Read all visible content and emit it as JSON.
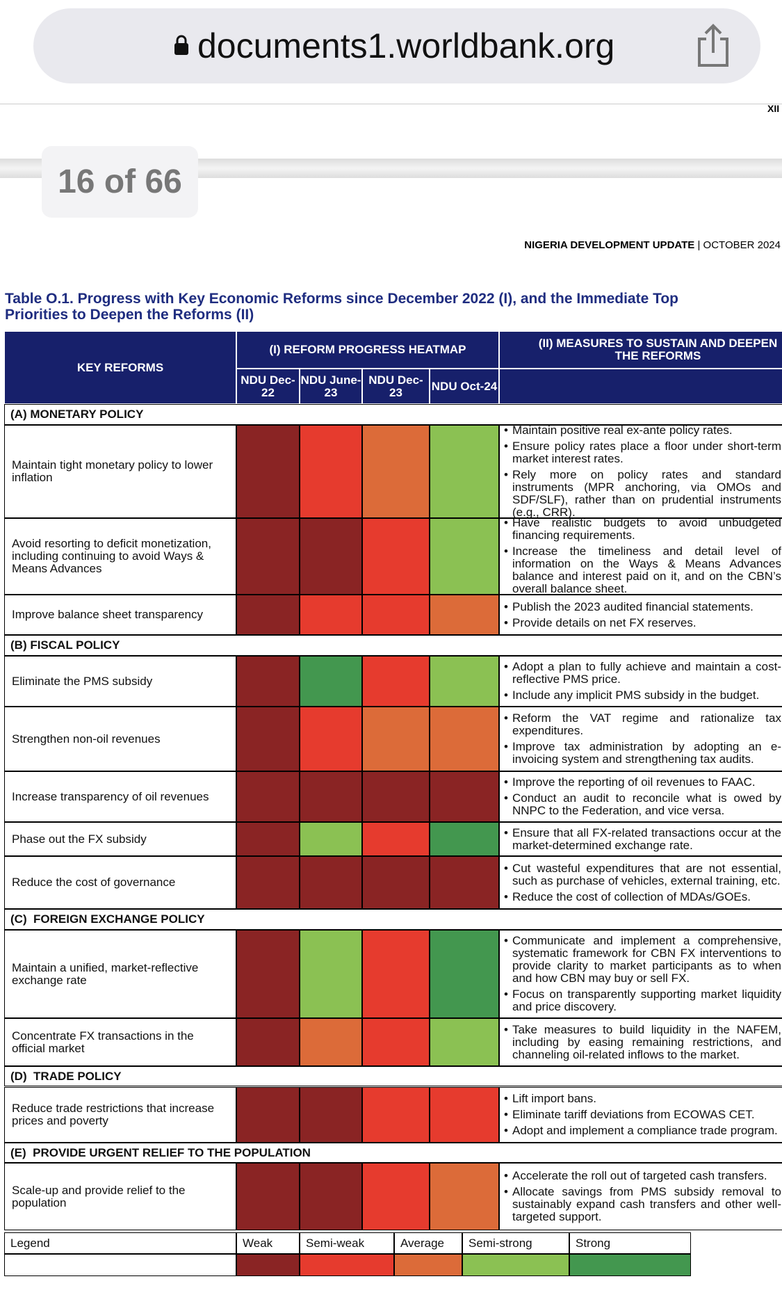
{
  "browser": {
    "url": "documents1.worldbank.org"
  },
  "page_indicator": "16 of 66",
  "page_number": "XII",
  "running_header": {
    "title": "NIGERIA DEVELOPMENT UPDATE",
    "separator": "|",
    "date": "OCTOBER 2024"
  },
  "table": {
    "title": "Table O.1. Progress with Key Economic Reforms since December 2022 (I), and the Immediate Top Priorities to Deepen the Reforms (II)",
    "header": {
      "key": "KEY REFORMS",
      "heatmap": "(I) REFORM PROGRESS HEATMAP",
      "measures": "(II) MEASURES TO SUSTAIN AND DEEPEN THE REFORMS",
      "periods": [
        "NDU Dec-22",
        "NDU June-23",
        "NDU Dec-23",
        "NDU Oct-24"
      ]
    },
    "sections": [
      {
        "title": "(A) MONETARY POLICY",
        "rows": [
          {
            "reform": "Maintain tight monetary policy to lower inflation",
            "heat": [
              0,
              1,
              2,
              3
            ],
            "measures": [
              "Maintain positive real ex-ante policy rates.",
              "Ensure policy rates place a floor under short-term market interest rates.",
              "Rely more on policy rates and standard instruments (MPR anchoring, via OMOs and SDF/SLF), rather than on prudential instruments (e.g., CRR)."
            ]
          },
          {
            "reform": "Avoid resorting to deficit monetization, including continuing to avoid Ways & Means Advances",
            "heat": [
              0,
              0,
              1,
              3
            ],
            "measures": [
              "Have realistic budgets to avoid unbudgeted financing requirements.",
              "Increase the timeliness and detail level of information on the Ways & Means Advances balance and interest paid on it, and on the CBN’s overall balance sheet."
            ]
          },
          {
            "reform": "Improve balance sheet transparency",
            "heat": [
              0,
              1,
              1,
              2
            ],
            "measures": [
              "Publish the 2023 audited financial statements.",
              "Provide details on net FX reserves."
            ]
          }
        ]
      },
      {
        "title": "(B) FISCAL POLICY",
        "rows": [
          {
            "reform": "Eliminate the PMS subsidy",
            "heat": [
              0,
              4,
              1,
              3
            ],
            "measures": [
              "Adopt a plan to fully achieve and maintain a cost-reflective PMS price.",
              "Include any implicit PMS subsidy in the budget."
            ]
          },
          {
            "reform": "Strengthen non-oil revenues",
            "heat": [
              0,
              1,
              2,
              2
            ],
            "measures": [
              "Reform the VAT regime and rationalize tax expenditures.",
              "Improve tax administration by adopting an e-invoicing system and strengthening tax audits."
            ]
          },
          {
            "reform": "Increase transparency of oil revenues",
            "heat": [
              0,
              0,
              0,
              0
            ],
            "measures": [
              "Improve the reporting of oil revenues to FAAC.",
              "Conduct an audit to reconcile what is owed by NNPC to the Federation, and vice versa."
            ]
          },
          {
            "reform": "Phase out the FX subsidy",
            "heat": [
              0,
              3,
              1,
              4
            ],
            "measures": [
              "Ensure that all FX-related transactions occur at the market-determined exchange rate."
            ]
          },
          {
            "reform": "Reduce the cost of governance",
            "heat": [
              0,
              0,
              0,
              0
            ],
            "measures": [
              "Cut wasteful expenditures that are not essential, such as purchase of vehicles, external training, etc.",
              "Reduce the cost of collection of MDAs/GOEs."
            ]
          }
        ]
      },
      {
        "title": "(C)  FOREIGN EXCHANGE POLICY",
        "rows": [
          {
            "reform": "Maintain a unified, market-reflective exchange rate",
            "heat": [
              0,
              3,
              1,
              4
            ],
            "measures": [
              "Communicate and implement a comprehensive, systematic framework for CBN FX interventions to provide clarity to market participants as to when and how CBN may buy or sell FX.",
              "Focus on transparently supporting market liquidity and price discovery."
            ]
          },
          {
            "reform": "Concentrate FX transactions in the official market",
            "heat": [
              0,
              2,
              1,
              3
            ],
            "measures": [
              "Take measures to build liquidity in the NAFEM, including by easing remaining restrictions, and channeling oil-related inflows to the market."
            ]
          }
        ]
      },
      {
        "title": "(D)  TRADE POLICY",
        "rows": [
          {
            "reform": "Reduce trade restrictions that increase prices and poverty",
            "heat": [
              0,
              0,
              1,
              1
            ],
            "measures": [
              "Lift import bans.",
              "Eliminate tariff deviations from ECOWAS CET.",
              "Adopt and implement a compliance trade program."
            ]
          }
        ]
      },
      {
        "title": "(E)  PROVIDE URGENT RELIEF TO THE POPULATION",
        "rows": [
          {
            "reform": "Scale-up and provide relief to the population",
            "heat": [
              0,
              0,
              1,
              2
            ],
            "measures": [
              "Accelerate the roll out of targeted cash transfers.",
              "Allocate savings from PMS subsidy removal to sustainably expand cash transfers and other well-targeted support."
            ]
          }
        ]
      }
    ],
    "legend": {
      "label": "Legend",
      "items": [
        {
          "name": "Weak",
          "color": "#8a2424"
        },
        {
          "name": "Semi-weak",
          "color": "#e63b2e"
        },
        {
          "name": "Average",
          "color": "#dc6b39"
        },
        {
          "name": "Semi-strong",
          "color": "#8bc153"
        },
        {
          "name": "Strong",
          "color": "#43974f"
        }
      ]
    }
  }
}
